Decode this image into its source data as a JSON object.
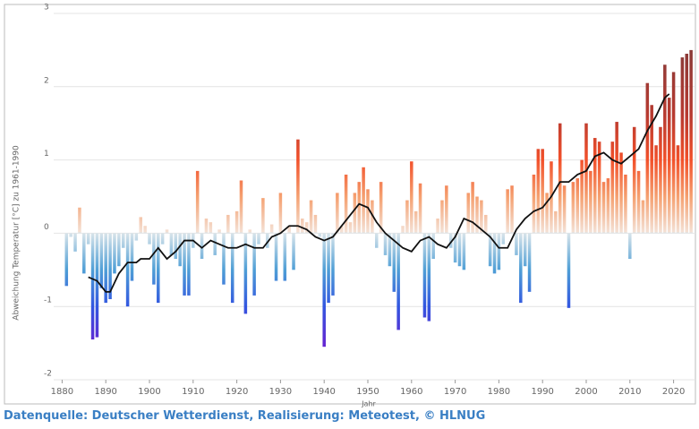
{
  "chart_data": {
    "type": "bar",
    "y_label": "Abweichung Temperatur [°C] zu 1961-1990",
    "x_label": "Jahr",
    "x": [
      1881,
      1882,
      1883,
      1884,
      1885,
      1886,
      1887,
      1888,
      1889,
      1890,
      1891,
      1892,
      1893,
      1894,
      1895,
      1896,
      1897,
      1898,
      1899,
      1900,
      1901,
      1902,
      1903,
      1904,
      1905,
      1906,
      1907,
      1908,
      1909,
      1910,
      1911,
      1912,
      1913,
      1914,
      1915,
      1916,
      1917,
      1918,
      1919,
      1920,
      1921,
      1922,
      1923,
      1924,
      1925,
      1926,
      1927,
      1928,
      1929,
      1930,
      1931,
      1932,
      1933,
      1934,
      1935,
      1936,
      1937,
      1938,
      1939,
      1940,
      1941,
      1942,
      1943,
      1944,
      1945,
      1946,
      1947,
      1948,
      1949,
      1950,
      1951,
      1952,
      1953,
      1954,
      1955,
      1956,
      1957,
      1958,
      1959,
      1960,
      1961,
      1962,
      1963,
      1964,
      1965,
      1966,
      1967,
      1968,
      1969,
      1970,
      1971,
      1972,
      1973,
      1974,
      1975,
      1976,
      1977,
      1978,
      1979,
      1980,
      1981,
      1982,
      1983,
      1984,
      1985,
      1986,
      1987,
      1988,
      1989,
      1990,
      1991,
      1992,
      1993,
      1994,
      1995,
      1996,
      1997,
      1998,
      1999,
      2000,
      2001,
      2002,
      2003,
      2004,
      2005,
      2006,
      2007,
      2008,
      2009,
      2010,
      2011,
      2012,
      2013,
      2014,
      2015,
      2016,
      2017,
      2018,
      2019,
      2020,
      2021,
      2022,
      2023,
      2024
    ],
    "values": [
      -0.72,
      -0.05,
      -0.25,
      0.35,
      -0.55,
      -0.15,
      -1.45,
      -1.42,
      -0.75,
      -0.95,
      -0.9,
      -0.55,
      -0.45,
      -0.2,
      -1.0,
      -0.65,
      -0.1,
      0.22,
      0.1,
      -0.15,
      -0.7,
      -0.95,
      -0.15,
      0.05,
      -0.3,
      -0.35,
      -0.45,
      -0.85,
      -0.85,
      -0.2,
      0.85,
      -0.35,
      0.2,
      0.15,
      -0.3,
      0.05,
      -0.7,
      0.25,
      -0.95,
      0.3,
      0.72,
      -1.1,
      0.05,
      -0.85,
      -0.15,
      0.48,
      -0.2,
      0.12,
      -0.65,
      0.55,
      -0.65,
      0.1,
      -0.5,
      1.28,
      0.2,
      0.15,
      0.45,
      0.25,
      -0.05,
      -1.55,
      -0.95,
      -0.85,
      0.55,
      0.1,
      0.8,
      0.15,
      0.55,
      0.7,
      0.9,
      0.6,
      0.45,
      -0.2,
      0.7,
      -0.3,
      -0.45,
      -0.8,
      -1.32,
      0.1,
      0.45,
      0.98,
      0.3,
      0.68,
      -1.15,
      -1.2,
      -0.35,
      0.2,
      0.45,
      0.65,
      -0.2,
      -0.4,
      -0.45,
      -0.5,
      0.55,
      0.7,
      0.5,
      0.45,
      0.25,
      -0.45,
      -0.55,
      -0.5,
      -0.15,
      0.6,
      0.65,
      -0.3,
      -0.95,
      -0.45,
      -0.8,
      0.8,
      1.15,
      1.15,
      0.55,
      0.98,
      0.3,
      1.5,
      0.65,
      -1.02,
      0.7,
      0.75,
      1.0,
      1.5,
      0.85,
      1.3,
      1.25,
      0.7,
      0.75,
      1.25,
      1.52,
      1.1,
      0.8,
      -0.35,
      1.45,
      0.85,
      0.45,
      2.05,
      1.75,
      1.2,
      1.45,
      2.3,
      1.85,
      2.2,
      1.2,
      2.4,
      2.45,
      2.5
    ],
    "color_scale": [
      {
        "value": -1.6,
        "color": "#6a1fd0"
      },
      {
        "value": -1.0,
        "color": "#3256e0"
      },
      {
        "value": -0.5,
        "color": "#4f9fd6"
      },
      {
        "value": 0,
        "color": "#d8e4ea"
      },
      {
        "value": 0.02,
        "color": "#f4e0d4"
      },
      {
        "value": 0.5,
        "color": "#f5a070"
      },
      {
        "value": 1.0,
        "color": "#f2502a"
      },
      {
        "value": 1.6,
        "color": "#b83a30"
      },
      {
        "value": 2.5,
        "color": "#8a3a38"
      }
    ],
    "trend": {
      "color": "#111111",
      "x": [
        1886,
        1888,
        1890,
        1891,
        1893,
        1895,
        1897,
        1898,
        1900,
        1902,
        1904,
        1906,
        1908,
        1910,
        1912,
        1914,
        1916,
        1918,
        1920,
        1922,
        1924,
        1926,
        1928,
        1930,
        1932,
        1934,
        1936,
        1938,
        1940,
        1942,
        1944,
        1946,
        1948,
        1950,
        1952,
        1954,
        1956,
        1958,
        1960,
        1962,
        1964,
        1966,
        1968,
        1970,
        1972,
        1974,
        1976,
        1978,
        1980,
        1982,
        1984,
        1986,
        1988,
        1990,
        1992,
        1994,
        1996,
        1998,
        2000,
        2002,
        2004,
        2006,
        2008,
        2010,
        2012,
        2014,
        2016,
        2018,
        2019
      ],
      "values": [
        -0.6,
        -0.65,
        -0.8,
        -0.8,
        -0.55,
        -0.4,
        -0.4,
        -0.35,
        -0.35,
        -0.2,
        -0.35,
        -0.25,
        -0.1,
        -0.1,
        -0.2,
        -0.1,
        -0.15,
        -0.2,
        -0.2,
        -0.15,
        -0.2,
        -0.2,
        -0.05,
        0.0,
        0.1,
        0.1,
        0.05,
        -0.05,
        -0.1,
        -0.05,
        0.1,
        0.25,
        0.4,
        0.35,
        0.15,
        0.0,
        -0.1,
        -0.2,
        -0.25,
        -0.1,
        -0.05,
        -0.15,
        -0.2,
        -0.05,
        0.2,
        0.15,
        0.05,
        -0.05,
        -0.2,
        -0.2,
        0.05,
        0.2,
        0.3,
        0.35,
        0.5,
        0.7,
        0.7,
        0.8,
        0.85,
        1.05,
        1.1,
        1.0,
        0.95,
        1.05,
        1.15,
        1.4,
        1.6,
        1.85,
        1.9
      ]
    },
    "xlim": [
      1875,
      2025
    ],
    "ylim": [
      -2,
      3
    ],
    "xticks": [
      1880,
      1890,
      1900,
      1910,
      1920,
      1930,
      1940,
      1950,
      1960,
      1970,
      1980,
      1990,
      2000,
      2010,
      2020
    ],
    "yticks": [
      -2,
      -1,
      0,
      1,
      2,
      3
    ],
    "grid": true
  },
  "footer": "Datenquelle: Deutscher Wetterdienst, Realisierung: Meteotest, © HLNUG"
}
